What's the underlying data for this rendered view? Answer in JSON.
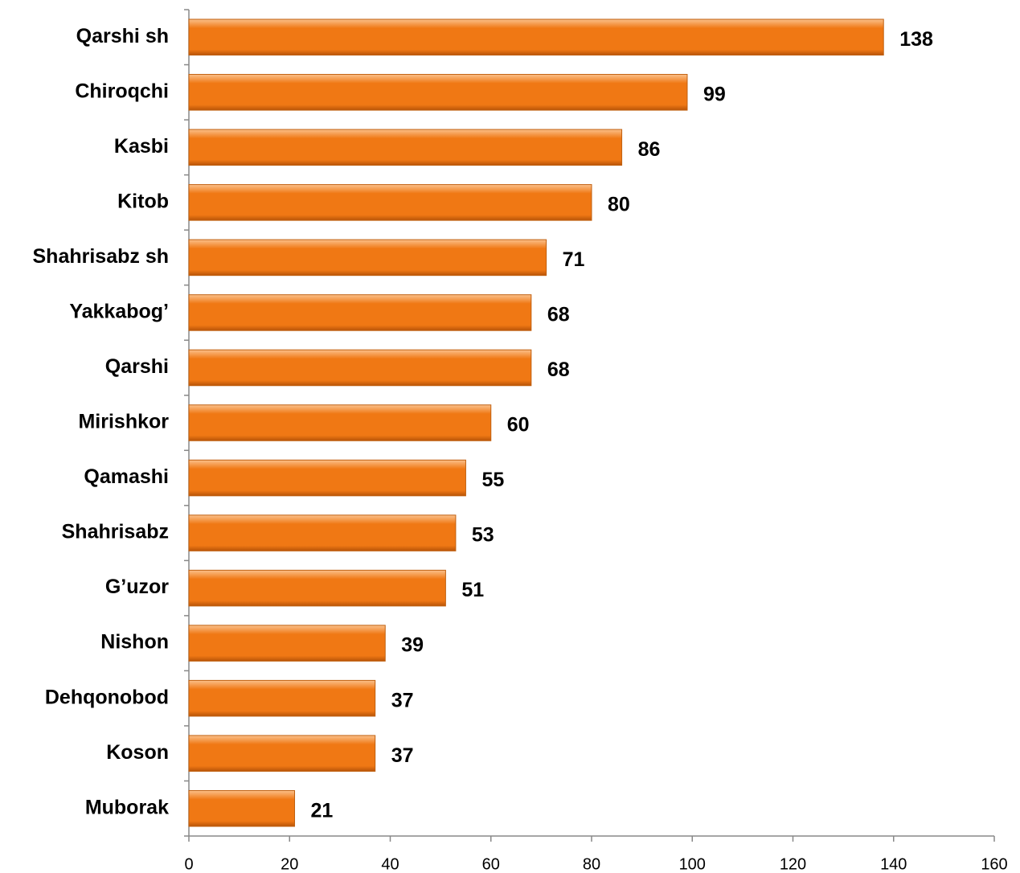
{
  "chart_data": {
    "type": "bar",
    "orientation": "horizontal",
    "categories": [
      "Qarshi sh",
      "Chiroqchi",
      "Kasbi",
      "Kitob",
      "Shahrisabz sh",
      "Yakkabog’",
      "Qarshi",
      "Mirishkor",
      "Qamashi",
      "Shahrisabz",
      "G’uzor",
      "Nishon",
      "Dehqonobod",
      "Koson",
      "Muborak"
    ],
    "values": [
      138,
      99,
      86,
      80,
      71,
      68,
      68,
      60,
      55,
      53,
      51,
      39,
      37,
      37,
      21
    ],
    "color": "#f07814",
    "xlim": [
      0,
      160
    ],
    "xticks": [
      0,
      20,
      40,
      60,
      80,
      100,
      120,
      140,
      160
    ],
    "grid": false
  }
}
